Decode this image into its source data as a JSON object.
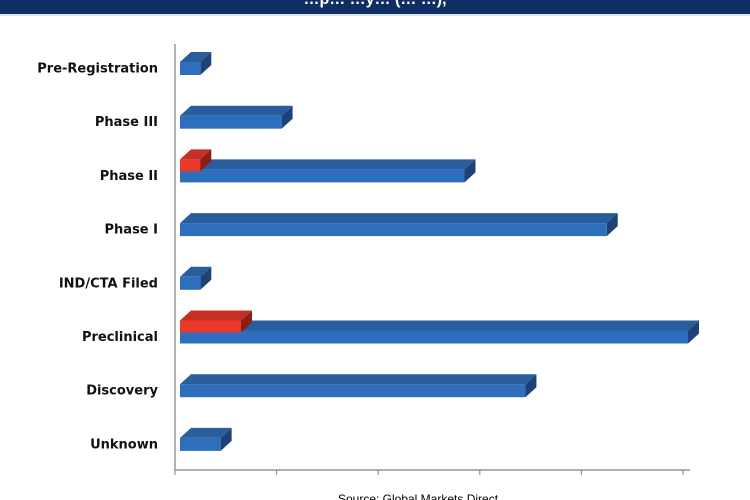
{
  "header": {
    "title": "…p… …y… (… …),"
  },
  "chart_data": {
    "type": "bar",
    "orientation": "horizontal",
    "style": "3d",
    "categories": [
      "Pre-Registration",
      "Phase III",
      "Phase II",
      "Phase I",
      "IND/CTA Filed",
      "Preclinical",
      "Discovery",
      "Unknown"
    ],
    "series": [
      {
        "color": "#2e6fbd",
        "values": [
          1,
          5,
          14,
          21,
          1,
          25,
          17,
          2
        ]
      },
      {
        "color": "#e8392b",
        "values": [
          0,
          0,
          1,
          0,
          0,
          3,
          0,
          0
        ]
      }
    ],
    "xlim": [
      0,
      25
    ],
    "grid": false,
    "legend": "none",
    "colors": {
      "bar_blue": "#2e6fbd",
      "bar_blue_top": "#2a5d9c",
      "bar_blue_side": "#1c4276",
      "bar_red": "#e8392b",
      "bar_red_top": "#c62f23",
      "bar_red_side": "#8c1e16",
      "axis": "#7f7f7f"
    }
  },
  "footer": {
    "source": "Source: Global Markets Direct"
  }
}
